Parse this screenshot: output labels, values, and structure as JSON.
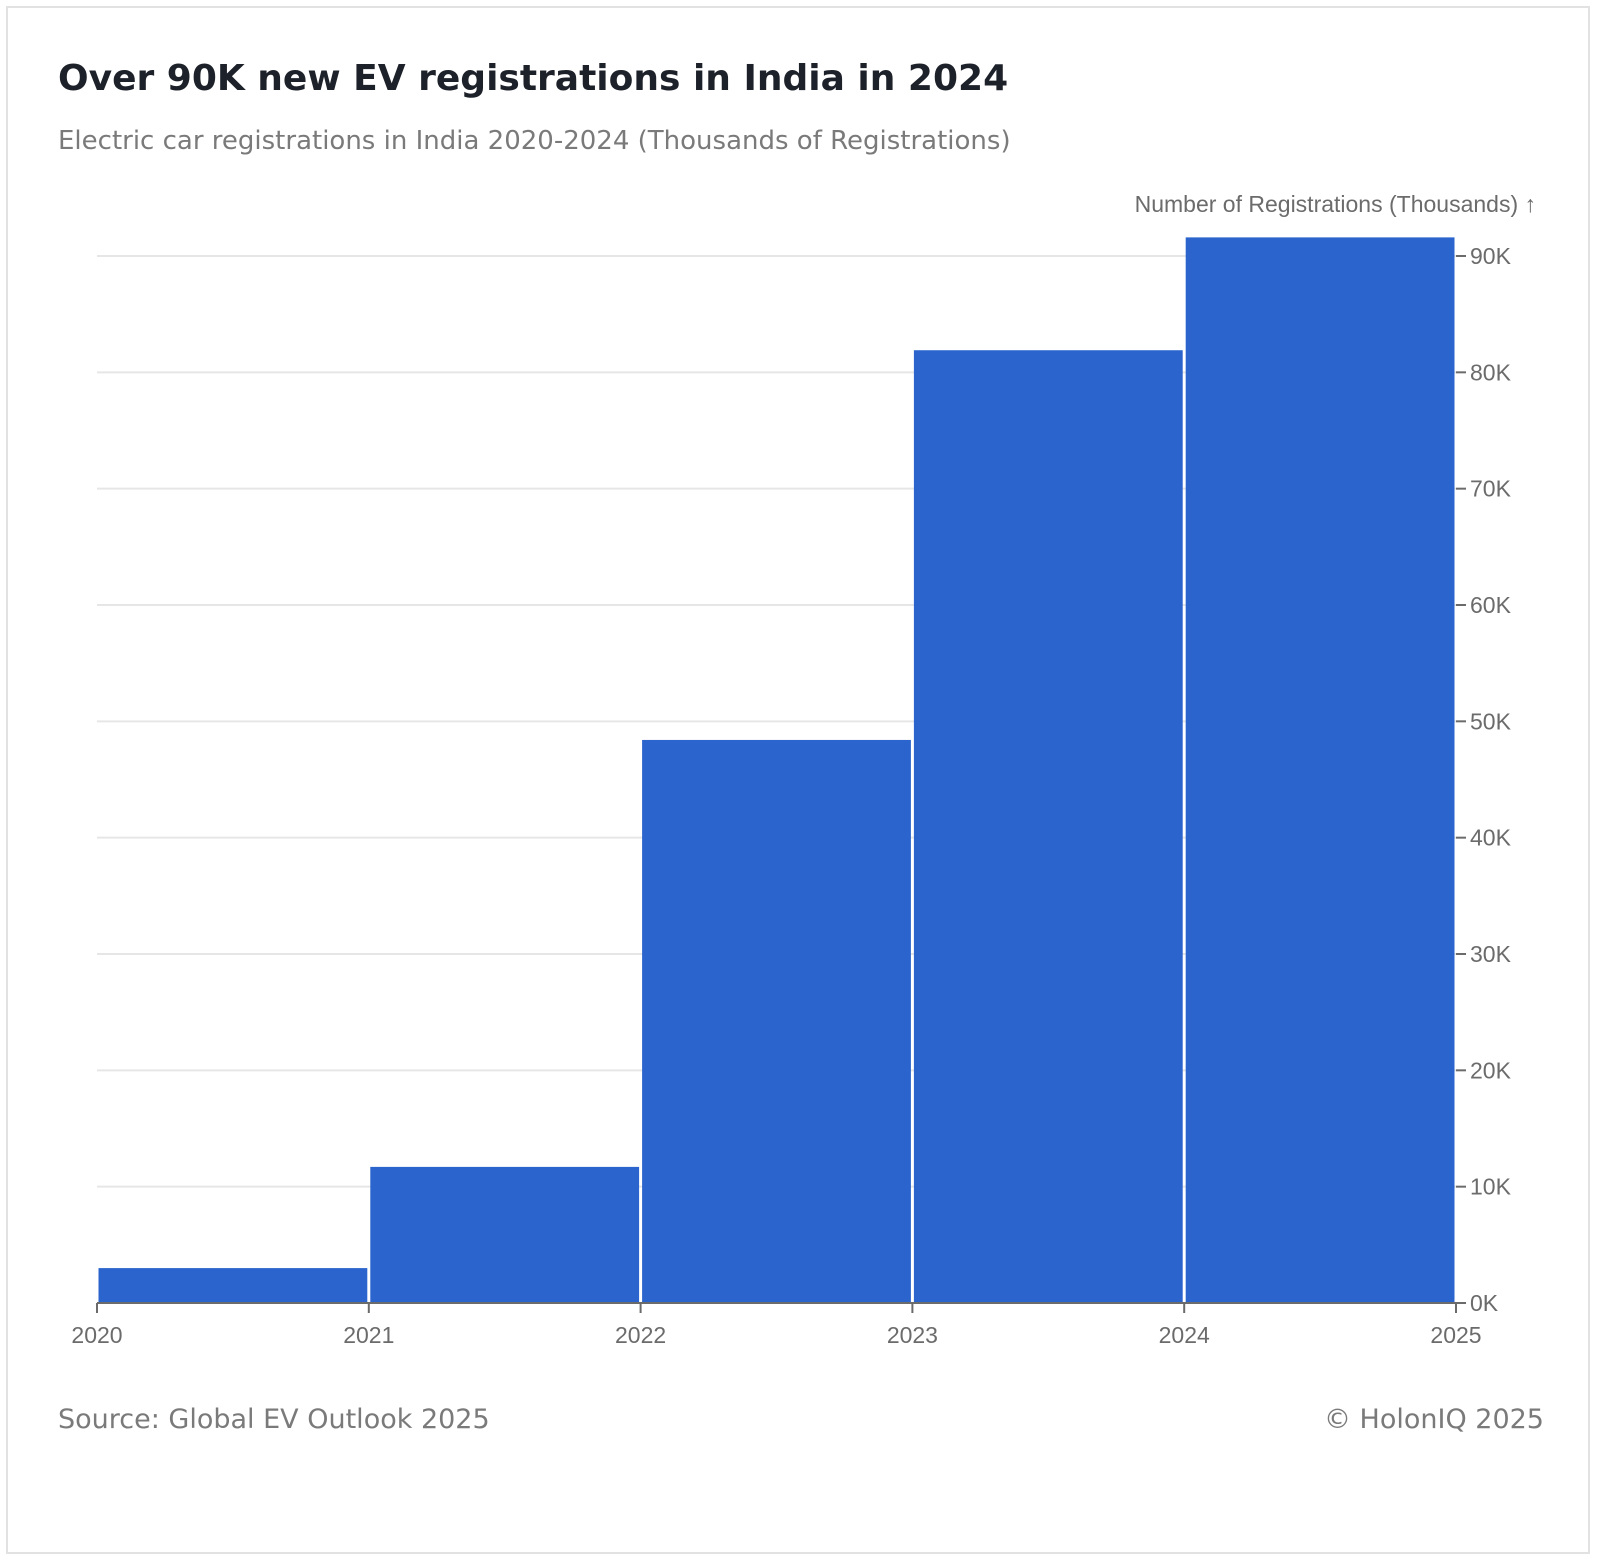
{
  "chart_data": {
    "type": "bar",
    "title": "Over 90K new EV registrations in India in 2024",
    "subtitle": "Electric car registrations in India 2020-2024 (Thousands of Registrations)",
    "ylabel": "Number of Registrations (Thousands) ↑",
    "x_ticks": [
      "2020",
      "2021",
      "2022",
      "2023",
      "2024",
      "2025"
    ],
    "bins": [
      {
        "start": 2020,
        "end": 2021,
        "value": 3
      },
      {
        "start": 2021,
        "end": 2022,
        "value": 11.7
      },
      {
        "start": 2022,
        "end": 2023,
        "value": 48.4
      },
      {
        "start": 2023,
        "end": 2024,
        "value": 81.9
      },
      {
        "start": 2024,
        "end": 2025,
        "value": 91.6
      }
    ],
    "xlim": [
      2020,
      2025
    ],
    "ylim": [
      0,
      90
    ],
    "y_ticks": [
      {
        "value": 0,
        "label": "0K"
      },
      {
        "value": 10,
        "label": "10K"
      },
      {
        "value": 20,
        "label": "20K"
      },
      {
        "value": 30,
        "label": "30K"
      },
      {
        "value": 40,
        "label": "40K"
      },
      {
        "value": 50,
        "label": "50K"
      },
      {
        "value": 60,
        "label": "60K"
      },
      {
        "value": 70,
        "label": "70K"
      },
      {
        "value": 80,
        "label": "80K"
      },
      {
        "value": 90,
        "label": "90K"
      }
    ],
    "y_axis_position": "right",
    "grid": true,
    "bar_color": "#2a64cc",
    "grid_color": "#e6e6e6"
  },
  "footer": {
    "source": "Source: Global EV Outlook 2025",
    "credit": "© HolonIQ 2025"
  }
}
